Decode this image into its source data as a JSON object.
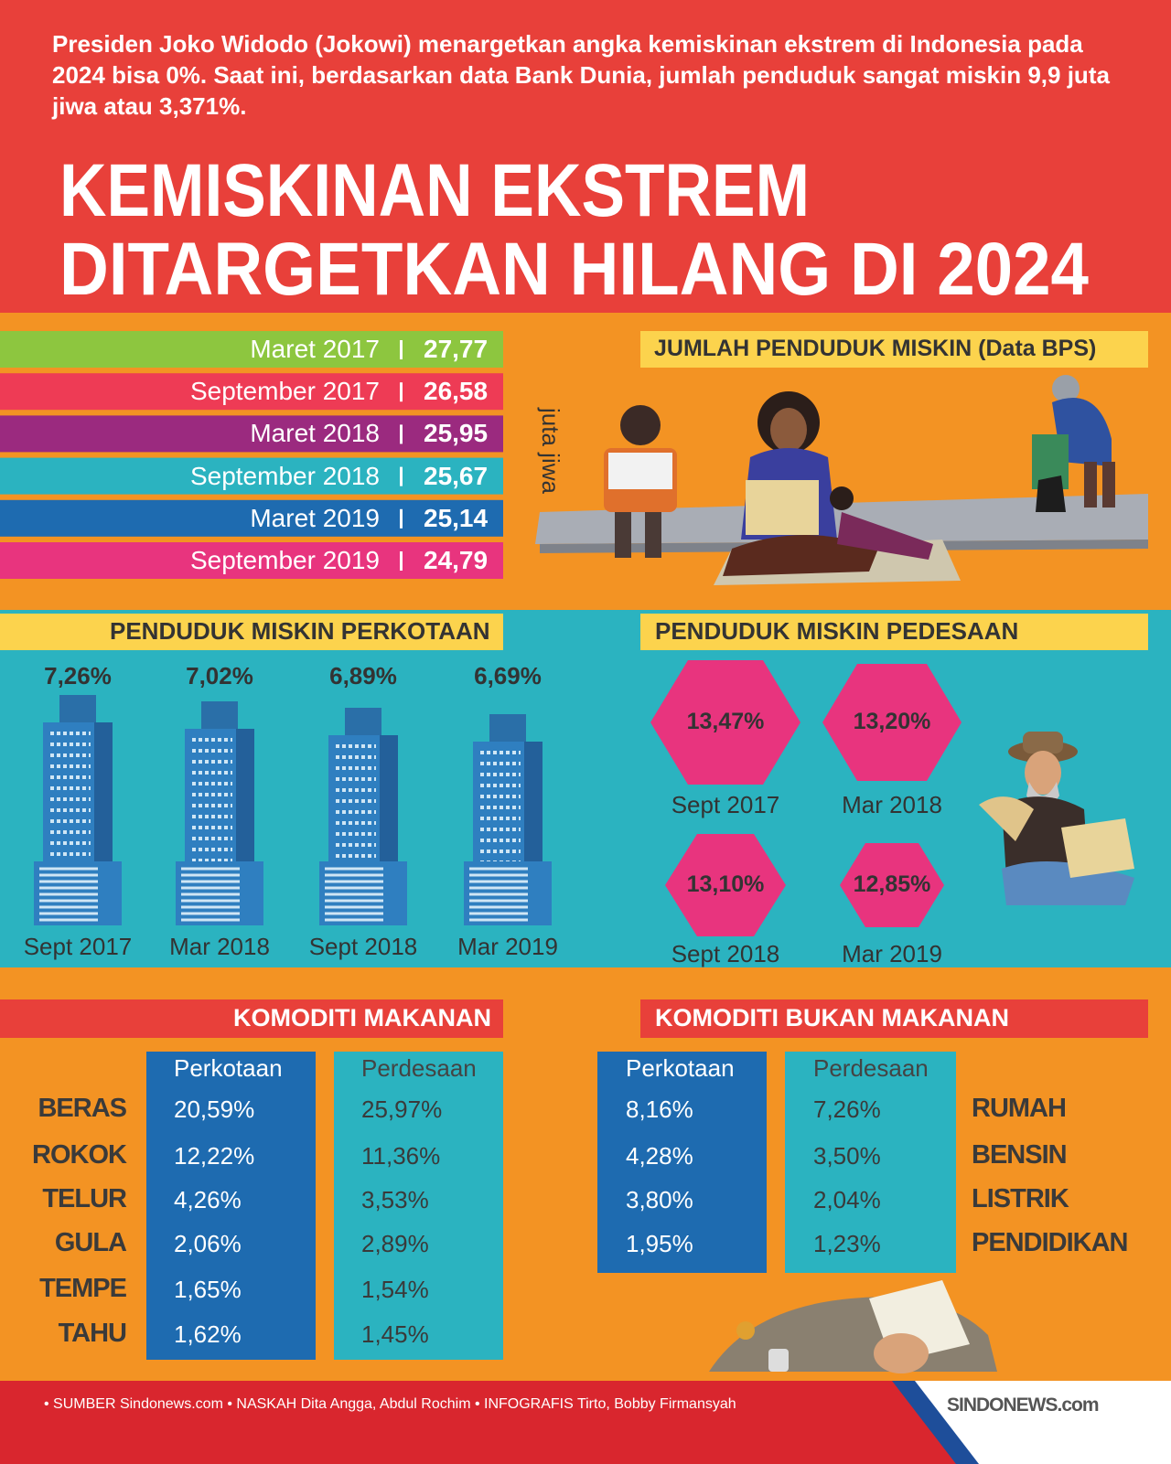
{
  "header": {
    "intro": "Presiden Joko Widodo (Jokowi) menargetkan angka kemiskinan ekstrem di Indonesia pada 2024 bisa 0%. Saat ini, berdasarkan data Bank Dunia, jumlah penduduk sangat miskin 9,9 juta jiwa atau 3,371%.",
    "title_lines": [
      "KEMISKINAN EKSTREM",
      "DITARGETKAN HILANG DI 2024"
    ]
  },
  "bps": {
    "title": "JUMLAH PENDUDUK MISKIN (Data BPS)",
    "unit": "juta jiwa",
    "rows": [
      {
        "period": "Maret 2017",
        "value": "27,77"
      },
      {
        "period": "September 2017",
        "value": "26,58"
      },
      {
        "period": "Maret 2018",
        "value": "25,95"
      },
      {
        "period": "September 2018",
        "value": "25,67"
      },
      {
        "period": "Maret 2019",
        "value": "25,14"
      },
      {
        "period": "September 2019",
        "value": "24,79"
      }
    ]
  },
  "urban": {
    "title": "PENDUDUK MISKIN PERKOTAAN",
    "items": [
      {
        "value": "7,26%",
        "label": "Sept 2017"
      },
      {
        "value": "7,02%",
        "label": "Mar 2018"
      },
      {
        "value": "6,89%",
        "label": "Sept 2018"
      },
      {
        "value": "6,69%",
        "label": "Mar 2019"
      }
    ]
  },
  "rural": {
    "title": "PENDUDUK MISKIN PEDESAAN",
    "items": [
      {
        "value": "13,47%",
        "label": "Sept 2017"
      },
      {
        "value": "13,20%",
        "label": "Mar 2018"
      },
      {
        "value": "13,10%",
        "label": "Sept 2018"
      },
      {
        "value": "12,85%",
        "label": "Mar 2019"
      }
    ]
  },
  "food": {
    "title": "KOMODITI MAKANAN",
    "columns": [
      "Perkotaan",
      "Perdesaan"
    ],
    "rows": [
      {
        "name": "BERAS",
        "values": [
          "20,59%",
          "25,97%"
        ]
      },
      {
        "name": "ROKOK",
        "values": [
          "12,22%",
          "11,36%"
        ]
      },
      {
        "name": "TELUR",
        "values": [
          "4,26%",
          "3,53%"
        ]
      },
      {
        "name": "GULA",
        "values": [
          "2,06%",
          "2,89%"
        ]
      },
      {
        "name": "TEMPE",
        "values": [
          "1,65%",
          "1,54%"
        ]
      },
      {
        "name": "TAHU",
        "values": [
          "1,62%",
          "1,45%"
        ]
      }
    ]
  },
  "nonfood": {
    "title": "KOMODITI BUKAN MAKANAN",
    "columns": [
      "Perkotaan",
      "Perdesaan"
    ],
    "rows": [
      {
        "name": "RUMAH",
        "values": [
          "8,16%",
          "7,26%"
        ]
      },
      {
        "name": "BENSIN",
        "values": [
          "4,28%",
          "3,50%"
        ]
      },
      {
        "name": "LISTRIK",
        "values": [
          "3,80%",
          "2,04%"
        ]
      },
      {
        "name": "PENDIDIKAN",
        "values": [
          "1,95%",
          "1,23%"
        ]
      }
    ]
  },
  "footer": {
    "credits": "• SUMBER Sindonews.com • NASKAH Dita Angga, Abdul Rochim • INFOGRAFIS Tirto, Bobby Firmansyah",
    "logo": "SINDONEWS.com"
  }
}
